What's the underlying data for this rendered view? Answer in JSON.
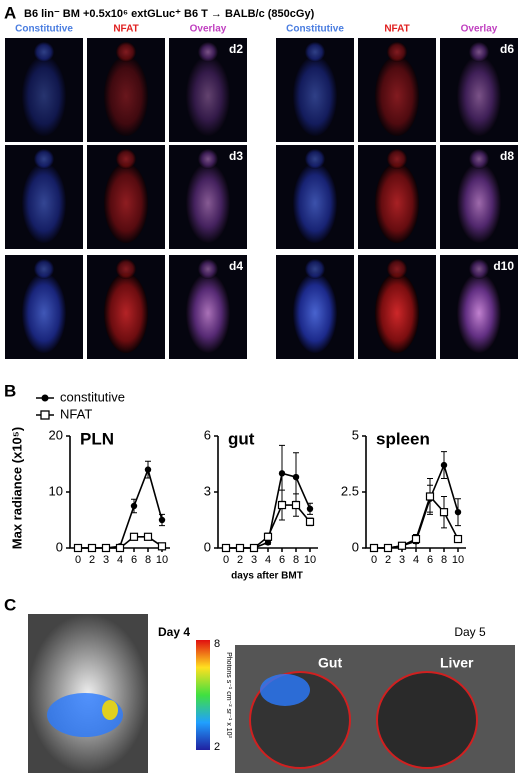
{
  "panel_a": {
    "label": "A",
    "title": "B6 lin⁻ BM +0.5x10⁶ extGLuc⁺ B6 T → BALB/c (850cGy)",
    "columns": [
      "Constitutive",
      "NFAT",
      "Overlay"
    ],
    "days": [
      "d2",
      "d3",
      "d4",
      "d6",
      "d8",
      "d10"
    ]
  },
  "panel_b": {
    "label": "B",
    "y_label": "Max radiance (x10⁵)",
    "x_label": "days after BMT"
  },
  "chart_data": [
    {
      "type": "line",
      "title": "PLN",
      "categories": [
        "0",
        "2",
        "3",
        "4",
        "6",
        "8",
        "10"
      ],
      "ylim": [
        0,
        20
      ],
      "yticks": [
        0,
        10,
        20
      ],
      "series": [
        {
          "name": "constitutive",
          "color": "#000000",
          "values": [
            0,
            0,
            0,
            0.3,
            7.5,
            14,
            5
          ],
          "errors": [
            0,
            0,
            0,
            0.2,
            1.2,
            1.5,
            1
          ]
        },
        {
          "name": "NFAT",
          "color": "#000000",
          "values": [
            0,
            0,
            0,
            0,
            2,
            2,
            0.3
          ],
          "errors": [
            0,
            0,
            0,
            0,
            0.3,
            0.5,
            0.2
          ]
        }
      ]
    },
    {
      "type": "line",
      "title": "gut",
      "categories": [
        "0",
        "2",
        "3",
        "4",
        "6",
        "8",
        "10"
      ],
      "ylim": [
        0,
        6
      ],
      "yticks": [
        0,
        3,
        6
      ],
      "series": [
        {
          "name": "constitutive",
          "color": "#000000",
          "values": [
            0,
            0,
            0,
            0.3,
            4,
            3.8,
            2.1
          ],
          "errors": [
            0,
            0,
            0,
            0.1,
            1.5,
            1.3,
            0.3
          ]
        },
        {
          "name": "NFAT",
          "color": "#000000",
          "values": [
            0,
            0,
            0,
            0.6,
            2.3,
            2.3,
            1.4
          ],
          "errors": [
            0,
            0,
            0,
            0.2,
            0.8,
            0.6,
            0.2
          ]
        }
      ]
    },
    {
      "type": "line",
      "title": "spleen",
      "categories": [
        "0",
        "2",
        "3",
        "4",
        "6",
        "8",
        "10"
      ],
      "ylim": [
        0,
        5
      ],
      "yticks": [
        0,
        2.5,
        5
      ],
      "series": [
        {
          "name": "constitutive",
          "color": "#000000",
          "values": [
            0,
            0,
            0.1,
            0.3,
            2.2,
            3.7,
            1.6
          ],
          "errors": [
            0,
            0,
            0,
            0.3,
            0.6,
            0.6,
            0.6
          ]
        },
        {
          "name": "NFAT",
          "color": "#000000",
          "values": [
            0,
            0,
            0.1,
            0.4,
            2.3,
            1.6,
            0.4
          ],
          "errors": [
            0,
            0,
            0,
            0.2,
            0.8,
            0.7,
            0.1
          ]
        }
      ]
    }
  ],
  "panel_c": {
    "label": "C",
    "left_day": "Day 4",
    "right_day": "Day 5",
    "colorbar_max": "8",
    "colorbar_min": "2",
    "colorbar_unit": "Photons s⁻¹ cm⁻² sr⁻¹ x 10³",
    "organs": [
      "Gut",
      "Liver"
    ]
  }
}
